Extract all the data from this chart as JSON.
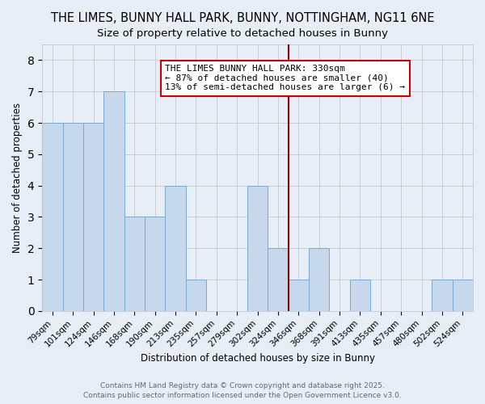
{
  "title": "THE LIMES, BUNNY HALL PARK, BUNNY, NOTTINGHAM, NG11 6NE",
  "subtitle": "Size of property relative to detached houses in Bunny",
  "xlabel": "Distribution of detached houses by size in Bunny",
  "ylabel": "Number of detached properties",
  "categories": [
    "79sqm",
    "101sqm",
    "124sqm",
    "146sqm",
    "168sqm",
    "190sqm",
    "213sqm",
    "235sqm",
    "257sqm",
    "279sqm",
    "302sqm",
    "324sqm",
    "346sqm",
    "368sqm",
    "391sqm",
    "413sqm",
    "435sqm",
    "457sqm",
    "480sqm",
    "502sqm",
    "524sqm"
  ],
  "values": [
    6,
    6,
    6,
    7,
    3,
    3,
    4,
    1,
    0,
    0,
    4,
    2,
    1,
    2,
    0,
    1,
    0,
    0,
    0,
    1,
    1
  ],
  "bar_color": "#c8d8ec",
  "bar_edge_color": "#7aaacf",
  "background_color": "#e8eef8",
  "grid_color": "#c8c8c8",
  "vline_color": "#8b0000",
  "vline_x_index": 11,
  "annotation_text": "THE LIMES BUNNY HALL PARK: 330sqm\n← 87% of detached houses are smaller (40)\n13% of semi-detached houses are larger (6) →",
  "annotation_box_color": "#ffffff",
  "annotation_box_edge_color": "#cc0000",
  "ylim": [
    0,
    8.5
  ],
  "yticks": [
    0,
    1,
    2,
    3,
    4,
    5,
    6,
    7,
    8
  ],
  "footer_line1": "Contains HM Land Registry data © Crown copyright and database right 2025.",
  "footer_line2": "Contains public sector information licensed under the Open Government Licence v3.0.",
  "title_fontsize": 10.5,
  "subtitle_fontsize": 9.5,
  "annotation_fontsize": 8,
  "footer_fontsize": 6.5,
  "axis_label_fontsize": 8.5,
  "tick_fontsize": 7.5
}
